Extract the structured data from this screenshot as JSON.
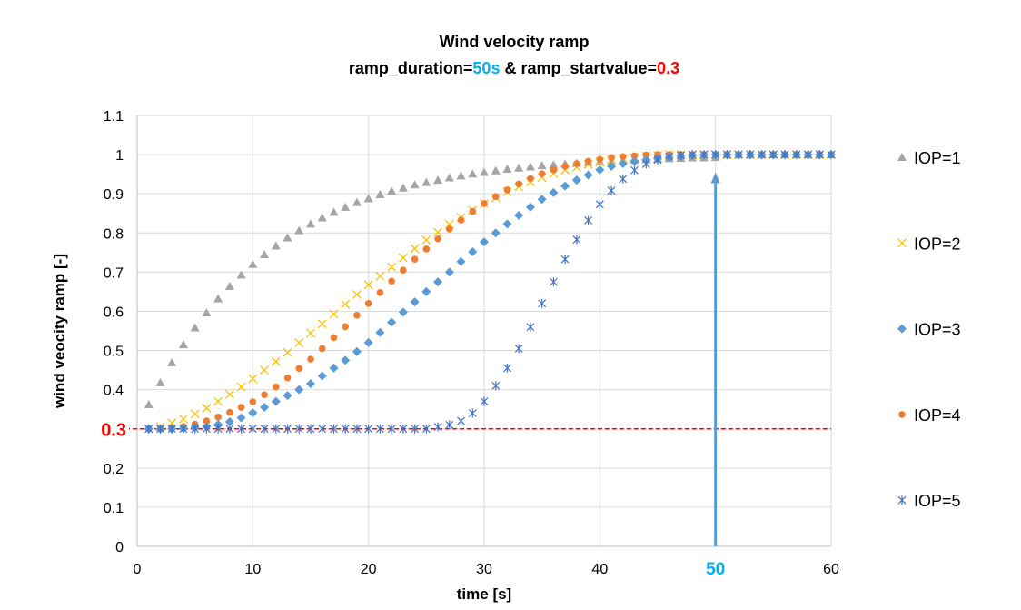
{
  "chart_data": {
    "type": "scatter",
    "title": "Wind velocity ramp",
    "subtitle_parts": [
      {
        "text": "ramp_duration=",
        "color": "#000000"
      },
      {
        "text": "50s",
        "color": "#00B0F0"
      },
      {
        "text": " & ramp_startvalue=",
        "color": "#000000"
      },
      {
        "text": "0.3",
        "color": "#FF0000"
      }
    ],
    "xlabel": "time [s]",
    "ylabel": "wind veocity ramp [-]",
    "xlim": [
      0,
      60
    ],
    "ylim": [
      0,
      1.1
    ],
    "xticks": [
      "0",
      "10",
      "20",
      "30",
      "40",
      "50",
      "60"
    ],
    "yticks": [
      "0",
      "0.1",
      "0.2",
      "0.3",
      "0.4",
      "0.5",
      "0.6",
      "0.7",
      "0.8",
      "0.9",
      "1",
      "1.1"
    ],
    "grid": true,
    "legend_position": "right",
    "x": [
      1,
      2,
      3,
      4,
      5,
      6,
      7,
      8,
      9,
      10,
      11,
      12,
      13,
      14,
      15,
      16,
      17,
      18,
      19,
      20,
      21,
      22,
      23,
      24,
      25,
      26,
      27,
      28,
      29,
      30,
      31,
      32,
      33,
      34,
      35,
      36,
      37,
      38,
      39,
      40,
      41,
      42,
      43,
      44,
      45,
      46,
      47,
      48,
      49,
      50,
      51,
      52,
      53,
      54,
      55,
      56,
      57,
      58,
      59,
      60
    ],
    "series": [
      {
        "name": "IOP=1",
        "color": "#A5A5A5",
        "marker": "triangle",
        "values": [
          0.362,
          0.418,
          0.469,
          0.515,
          0.558,
          0.596,
          0.632,
          0.664,
          0.693,
          0.72,
          0.745,
          0.767,
          0.788,
          0.806,
          0.823,
          0.839,
          0.853,
          0.866,
          0.878,
          0.888,
          0.898,
          0.907,
          0.915,
          0.923,
          0.929,
          0.935,
          0.941,
          0.946,
          0.951,
          0.955,
          0.959,
          0.963,
          0.966,
          0.969,
          0.972,
          0.974,
          0.976,
          0.978,
          0.98,
          0.982,
          0.984,
          0.985,
          0.986,
          0.988,
          0.989,
          0.99,
          0.991,
          0.992,
          0.992,
          0.993,
          1,
          1,
          1,
          1,
          1,
          1,
          1,
          1,
          1,
          1
        ]
      },
      {
        "name": "IOP=2",
        "color": "#FFC000",
        "marker": "x",
        "values": [
          0.3,
          0.305,
          0.315,
          0.325,
          0.338,
          0.353,
          0.37,
          0.388,
          0.407,
          0.428,
          0.45,
          0.472,
          0.495,
          0.52,
          0.544,
          0.568,
          0.593,
          0.618,
          0.643,
          0.668,
          0.69,
          0.713,
          0.737,
          0.76,
          0.782,
          0.802,
          0.822,
          0.84,
          0.858,
          0.875,
          0.89,
          0.905,
          0.918,
          0.93,
          0.942,
          0.952,
          0.961,
          0.968,
          0.975,
          0.981,
          0.986,
          0.99,
          0.993,
          0.996,
          0.998,
          1,
          1,
          1,
          1,
          1,
          1,
          1,
          1,
          1,
          1,
          1,
          1,
          1,
          1,
          1
        ]
      },
      {
        "name": "IOP=3",
        "color": "#5B9BD5",
        "marker": "diamond",
        "values": [
          0.3,
          0.3,
          0.3,
          0.301,
          0.303,
          0.306,
          0.311,
          0.318,
          0.328,
          0.341,
          0.355,
          0.37,
          0.385,
          0.4,
          0.415,
          0.435,
          0.455,
          0.475,
          0.497,
          0.52,
          0.546,
          0.572,
          0.598,
          0.624,
          0.65,
          0.675,
          0.7,
          0.727,
          0.752,
          0.777,
          0.8,
          0.823,
          0.845,
          0.866,
          0.886,
          0.903,
          0.92,
          0.935,
          0.948,
          0.961,
          0.97,
          0.977,
          0.983,
          0.987,
          0.99,
          0.993,
          0.996,
          0.998,
          0.999,
          1,
          1,
          1,
          1,
          1,
          1,
          1,
          1,
          1,
          1,
          1
        ]
      },
      {
        "name": "IOP=4",
        "color": "#ED7D31",
        "marker": "circle",
        "values": [
          0.3,
          0.3,
          0.302,
          0.306,
          0.312,
          0.32,
          0.33,
          0.342,
          0.355,
          0.369,
          0.387,
          0.407,
          0.43,
          0.454,
          0.478,
          0.505,
          0.533,
          0.561,
          0.59,
          0.62,
          0.648,
          0.677,
          0.705,
          0.733,
          0.759,
          0.785,
          0.81,
          0.833,
          0.855,
          0.875,
          0.893,
          0.91,
          0.925,
          0.939,
          0.951,
          0.961,
          0.97,
          0.977,
          0.983,
          0.988,
          0.992,
          0.995,
          0.997,
          0.999,
          1,
          1,
          1,
          1,
          1,
          1,
          1,
          1,
          1,
          1,
          1,
          1,
          1,
          1,
          1,
          1
        ]
      },
      {
        "name": "IOP=5",
        "color": "#4472C4",
        "marker": "star",
        "values": [
          0.3,
          0.3,
          0.3,
          0.3,
          0.3,
          0.3,
          0.3,
          0.3,
          0.3,
          0.3,
          0.3,
          0.3,
          0.3,
          0.3,
          0.3,
          0.3,
          0.3,
          0.3,
          0.3,
          0.3,
          0.3,
          0.3,
          0.3,
          0.3,
          0.3,
          0.305,
          0.31,
          0.32,
          0.34,
          0.37,
          0.41,
          0.455,
          0.505,
          0.56,
          0.62,
          0.675,
          0.733,
          0.783,
          0.832,
          0.873,
          0.908,
          0.938,
          0.96,
          0.976,
          0.987,
          0.995,
          0.998,
          1,
          1,
          1,
          1,
          1,
          1,
          1,
          1,
          1,
          1,
          1,
          1,
          1
        ]
      }
    ],
    "annotations": {
      "startvalue_line": {
        "y": 0.3,
        "label": "0.3",
        "color": "#FF0000"
      },
      "duration_arrow": {
        "x": 50,
        "y_from": 0,
        "y_to": 0.955,
        "label": "50",
        "color": "#5B9BD5",
        "label_color": "#00B0F0"
      }
    }
  }
}
